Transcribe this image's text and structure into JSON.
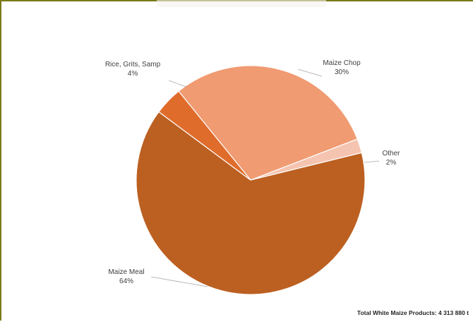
{
  "chart_data": {
    "type": "pie",
    "title": "",
    "slices": [
      {
        "name": "Maize Chop",
        "value": 30,
        "label": "30%",
        "color": "#f09b72"
      },
      {
        "name": "Other",
        "value": 2,
        "label": "2%",
        "color": "#f5c4b0"
      },
      {
        "name": "Maize Meal",
        "value": 64,
        "label": "64%",
        "color": "#bc6022"
      },
      {
        "name": "Rice, Grits, Samp",
        "value": 4,
        "label": "4%",
        "color": "#e06c2c"
      }
    ],
    "legend": "none",
    "note": "Total White Maize Products: 4 313 880 t"
  }
}
